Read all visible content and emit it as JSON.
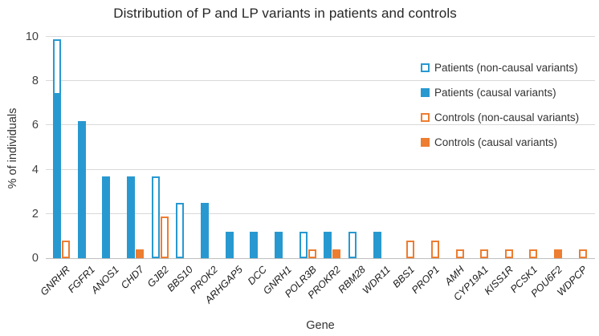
{
  "title": "Distribution of P and LP variants in patients and controls",
  "colors": {
    "patients_blue": "#2899D0",
    "controls_orange": "#ED7D31",
    "gridline": "#D9D9D9",
    "axis": "#BFBFBF"
  },
  "legend": [
    {
      "label": "Patients (non-causal variants)",
      "swatch": "open-blue"
    },
    {
      "label": "Patients (causal variants)",
      "swatch": "solid-blue"
    },
    {
      "label": "Controls (non-causal variants)",
      "swatch": "open-orange"
    },
    {
      "label": "Controls (causal variants)",
      "swatch": "solid-orange"
    }
  ],
  "chart_data": {
    "type": "bar",
    "title": "Distribution of P and LP variants in patients and controls",
    "xlabel": "Gene",
    "ylabel": "% of individuals",
    "ylim": [
      0,
      10
    ],
    "yticks": [
      0,
      2,
      4,
      6,
      8,
      10
    ],
    "grid": true,
    "legend_position": "upper right",
    "stacking": "two stacked bars per gene: patients (causal bottom, non-causal top) and controls (causal bottom, non-causal top)",
    "categories": [
      "GNRHR",
      "FGFR1",
      "ANOS1",
      "CHD7",
      "GJB2",
      "BBS10",
      "PROK2",
      "ARHGAP5",
      "DCC",
      "GNRH1",
      "POLR3B",
      "PROKR2",
      "RBM28",
      "WDR11",
      "BBS1",
      "PROP1",
      "AMH",
      "CYP19A1",
      "KISS1R",
      "PCSK1",
      "POU6F2",
      "WDPCP"
    ],
    "series": [
      {
        "name": "Patients (non-causal variants)",
        "group": "patients",
        "fill": "open",
        "values": [
          2.5,
          0,
          0,
          0,
          3.7,
          2.5,
          0,
          0,
          0,
          0,
          1.2,
          0,
          1.2,
          0,
          0,
          0,
          0,
          0,
          0,
          0,
          0,
          0
        ]
      },
      {
        "name": "Patients (causal variants)",
        "group": "patients",
        "fill": "solid",
        "values": [
          7.4,
          6.2,
          3.7,
          3.7,
          0,
          0,
          2.5,
          1.2,
          1.2,
          1.2,
          0,
          1.2,
          0,
          1.2,
          0,
          0,
          0,
          0,
          0,
          0,
          0,
          0
        ]
      },
      {
        "name": "Controls (non-causal variants)",
        "group": "controls",
        "fill": "open",
        "values": [
          0.8,
          0,
          0,
          0,
          1.9,
          0,
          0,
          0,
          0,
          0,
          0.4,
          0,
          0,
          0,
          0.8,
          0.8,
          0.4,
          0.4,
          0.4,
          0.4,
          0,
          0.4
        ]
      },
      {
        "name": "Controls (causal variants)",
        "group": "controls",
        "fill": "solid",
        "values": [
          0,
          0,
          0,
          0.4,
          0,
          0,
          0,
          0,
          0,
          0,
          0,
          0.4,
          0,
          0,
          0,
          0,
          0,
          0,
          0,
          0,
          0.4,
          0
        ]
      }
    ]
  }
}
